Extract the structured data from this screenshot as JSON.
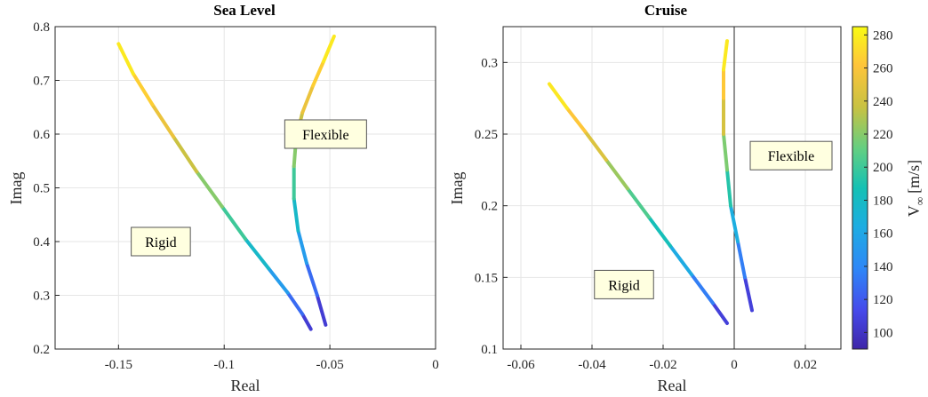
{
  "chart_data": [
    {
      "type": "line",
      "title": "Sea Level",
      "xlabel": "Real",
      "ylabel": "Imag",
      "xlim": [
        -0.18,
        0
      ],
      "ylim": [
        0.2,
        0.8
      ],
      "xticks": [
        -0.15,
        -0.1,
        -0.05,
        0
      ],
      "xtick_labels": [
        "-0.15",
        "-0.1",
        "-0.05",
        "0"
      ],
      "yticks": [
        0.2,
        0.3,
        0.4,
        0.5,
        0.6,
        0.7,
        0.8
      ],
      "ytick_labels": [
        "0.2",
        "0.3",
        "0.4",
        "0.5",
        "0.6",
        "0.7",
        "0.8"
      ],
      "grid": true,
      "annotations": [
        {
          "text": "Rigid",
          "x": -0.13,
          "y": 0.4
        },
        {
          "text": "Flexible",
          "x": -0.052,
          "y": 0.6
        }
      ],
      "series": [
        {
          "name": "Rigid",
          "x": [
            -0.059,
            -0.063,
            -0.07,
            -0.079,
            -0.09,
            -0.101,
            -0.113,
            -0.124,
            -0.134,
            -0.143,
            -0.15
          ],
          "y": [
            0.237,
            0.265,
            0.305,
            0.35,
            0.405,
            0.465,
            0.53,
            0.595,
            0.655,
            0.712,
            0.768
          ],
          "v": [
            95,
            115,
            140,
            165,
            190,
            210,
            230,
            245,
            260,
            272,
            283
          ]
        },
        {
          "name": "Flexible",
          "x": [
            -0.052,
            -0.056,
            -0.061,
            -0.065,
            -0.067,
            -0.067,
            -0.066,
            -0.063,
            -0.058,
            -0.053,
            -0.048
          ],
          "y": [
            0.245,
            0.3,
            0.36,
            0.42,
            0.48,
            0.54,
            0.59,
            0.64,
            0.69,
            0.735,
            0.782
          ],
          "v": [
            95,
            115,
            140,
            165,
            190,
            210,
            230,
            245,
            260,
            272,
            283
          ]
        }
      ]
    },
    {
      "type": "line",
      "title": "Cruise",
      "xlabel": "Real",
      "ylabel": "Imag",
      "xlim": [
        -0.065,
        0.03
      ],
      "ylim": [
        0.1,
        0.325
      ],
      "xticks": [
        -0.06,
        -0.04,
        -0.02,
        0,
        0.02
      ],
      "xtick_labels": [
        "-0.06",
        "-0.04",
        "-0.02",
        "0",
        "0.02"
      ],
      "yticks": [
        0.1,
        0.15,
        0.2,
        0.25,
        0.3
      ],
      "ytick_labels": [
        "0.1",
        "0.15",
        "0.2",
        "0.25",
        "0.3"
      ],
      "grid": true,
      "reference_line_x": 0,
      "annotations": [
        {
          "text": "Rigid",
          "x": -0.031,
          "y": 0.145
        },
        {
          "text": "Flexible",
          "x": 0.016,
          "y": 0.235
        }
      ],
      "series": [
        {
          "name": "Rigid",
          "x": [
            -0.002,
            -0.006,
            -0.012,
            -0.018,
            -0.024,
            -0.03,
            -0.036,
            -0.042,
            -0.047,
            -0.052
          ],
          "y": [
            0.118,
            0.132,
            0.152,
            0.172,
            0.192,
            0.212,
            0.232,
            0.252,
            0.268,
            0.285
          ],
          "v": [
            95,
            120,
            150,
            175,
            195,
            215,
            235,
            255,
            270,
            283
          ]
        },
        {
          "name": "Flexible",
          "x": [
            0.005,
            0.003,
            0.001,
            -0.001,
            -0.002,
            -0.003,
            -0.003,
            -0.003,
            -0.002
          ],
          "y": [
            0.127,
            0.15,
            0.175,
            0.2,
            0.225,
            0.25,
            0.275,
            0.295,
            0.315
          ],
          "v": [
            95,
            120,
            150,
            180,
            205,
            230,
            255,
            272,
            283
          ]
        }
      ]
    }
  ],
  "colorbar": {
    "label": "V",
    "label_subscript": "∞",
    "label_unit": "[m/s]",
    "min": 90,
    "max": 285,
    "ticks": [
      100,
      120,
      140,
      160,
      180,
      200,
      220,
      240,
      260,
      280
    ],
    "tick_labels": [
      "100",
      "120",
      "140",
      "160",
      "180",
      "200",
      "220",
      "240",
      "260",
      "280"
    ],
    "colormap": "parula"
  }
}
